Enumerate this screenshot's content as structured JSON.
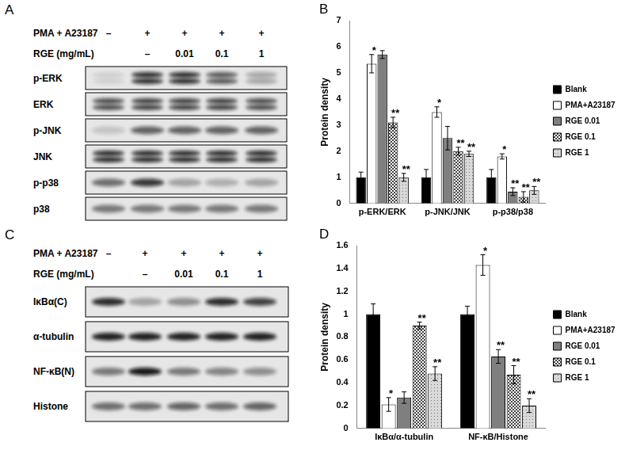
{
  "blots": [
    {
      "panel": "A",
      "treatments": [
        {
          "label": "PMA + A23187",
          "lanes": [
            "–",
            "+",
            "+",
            "+",
            "+"
          ]
        },
        {
          "label": "RGE (mg/mL)",
          "lanes": [
            null,
            "–",
            "0.01",
            "0.1",
            "1"
          ]
        }
      ],
      "rows": [
        {
          "label": "p-ERK",
          "doublet": true,
          "band_density": [
            0.1,
            0.85,
            0.85,
            0.65,
            0.3
          ]
        },
        {
          "label": "ERK",
          "doublet": true,
          "band_density": [
            0.7,
            0.75,
            0.75,
            0.75,
            0.7
          ]
        },
        {
          "label": "p-JNK",
          "doublet": false,
          "band_density": [
            0.15,
            0.6,
            0.6,
            0.6,
            0.6
          ]
        },
        {
          "label": "JNK",
          "doublet": true,
          "band_density": [
            0.85,
            0.85,
            0.85,
            0.85,
            0.85
          ]
        },
        {
          "label": "p-p38",
          "doublet": false,
          "band_density": [
            0.55,
            0.8,
            0.3,
            0.25,
            0.3
          ]
        },
        {
          "label": "p38",
          "doublet": false,
          "band_density": [
            0.5,
            0.5,
            0.5,
            0.5,
            0.5
          ]
        }
      ]
    },
    {
      "panel": "C",
      "treatments": [
        {
          "label": "PMA + A23187",
          "lanes": [
            "–",
            "+",
            "+",
            "+",
            "+"
          ]
        },
        {
          "label": "RGE (mg/mL)",
          "lanes": [
            null,
            "–",
            "0.01",
            "0.1",
            "1"
          ]
        }
      ],
      "rows": [
        {
          "label": "IκBα(C)",
          "doublet": false,
          "band_density": [
            0.85,
            0.3,
            0.4,
            0.85,
            0.75
          ]
        },
        {
          "label": "α-tubulin",
          "doublet": false,
          "band_density": [
            0.9,
            0.9,
            0.9,
            0.9,
            0.9
          ]
        },
        {
          "label": "NF-κB(N)",
          "doublet": false,
          "band_density": [
            0.5,
            0.95,
            0.5,
            0.45,
            0.4
          ]
        },
        {
          "label": "Histone",
          "doublet": false,
          "band_density": [
            0.55,
            0.55,
            0.6,
            0.55,
            0.6
          ]
        }
      ]
    }
  ],
  "chart_data": [
    {
      "type": "bar",
      "panel": "B",
      "y_label": "Protein density",
      "categories": [
        "p-ERK/ERK",
        "p-JNK/JNK",
        "p-p38/p38"
      ],
      "ylim": [
        0,
        7
      ],
      "yticks": [
        0,
        1,
        2,
        3,
        4,
        5,
        6,
        7
      ],
      "grid": false,
      "legend": "right",
      "series": [
        {
          "name": "Blank",
          "color": "#000000",
          "values": [
            1,
            1,
            1
          ],
          "errors": [
            0.2,
            0.3,
            0.3
          ],
          "significance": [
            null,
            null,
            null
          ]
        },
        {
          "name": "PMA+A23187",
          "color": "#ffffff",
          "values": [
            5.35,
            3.5,
            1.8
          ],
          "errors": [
            0.35,
            0.2,
            0.1
          ],
          "significance": [
            "*",
            "*",
            "*"
          ]
        },
        {
          "name": "RGE 0.01",
          "color": "#7f7f7f",
          "values": [
            5.7,
            2.5,
            0.45
          ],
          "errors": [
            0.15,
            0.45,
            0.15
          ],
          "significance": [
            null,
            null,
            "**"
          ]
        },
        {
          "name": "RGE 0.1",
          "color": "#bfbfbf",
          "values": [
            3.1,
            2.0,
            0.25
          ],
          "errors": [
            0.2,
            0.15,
            0.2
          ],
          "significance": [
            "**",
            "**",
            "**"
          ]
        },
        {
          "name": "RGE 1",
          "color": "#d9d9d9",
          "values": [
            1.0,
            1.9,
            0.5
          ],
          "errors": [
            0.15,
            0.1,
            0.15
          ],
          "significance": [
            "**",
            "**",
            "**"
          ]
        }
      ]
    },
    {
      "type": "bar",
      "panel": "D",
      "y_label": "Protein density",
      "categories": [
        "IκBα/α-tubulin",
        "NF-κB/Histone"
      ],
      "ylim": [
        0,
        1.6
      ],
      "yticks": [
        0,
        0.2,
        0.4,
        0.6,
        0.8,
        1,
        1.2,
        1.4,
        1.6
      ],
      "grid": false,
      "legend": "right",
      "series": [
        {
          "name": "Blank",
          "color": "#000000",
          "values": [
            1,
            1
          ],
          "errors": [
            0.09,
            0.07
          ],
          "significance": [
            null,
            null
          ]
        },
        {
          "name": "PMA+A23187",
          "color": "#ffffff",
          "values": [
            0.21,
            1.43
          ],
          "errors": [
            0.06,
            0.09
          ],
          "significance": [
            "*",
            "*"
          ]
        },
        {
          "name": "RGE 0.01",
          "color": "#7f7f7f",
          "values": [
            0.27,
            0.63
          ],
          "errors": [
            0.05,
            0.06
          ],
          "significance": [
            null,
            "**"
          ]
        },
        {
          "name": "RGE 0.1",
          "color": "#bfbfbf",
          "values": [
            0.9,
            0.47
          ],
          "errors": [
            0.03,
            0.08
          ],
          "significance": [
            "**",
            "**"
          ]
        },
        {
          "name": "RGE 1",
          "color": "#d9d9d9",
          "values": [
            0.48,
            0.2
          ],
          "errors": [
            0.06,
            0.06
          ],
          "significance": [
            "**",
            "**"
          ]
        }
      ]
    }
  ]
}
